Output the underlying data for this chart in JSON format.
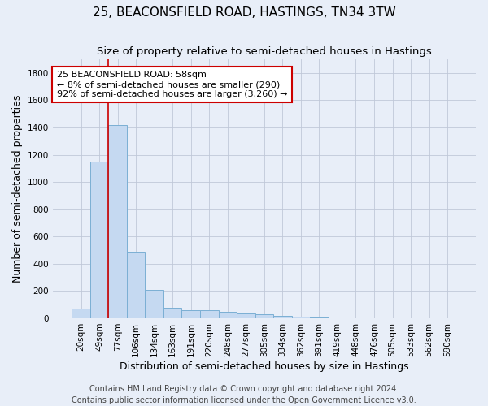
{
  "title": "25, BEACONSFIELD ROAD, HASTINGS, TN34 3TW",
  "subtitle": "Size of property relative to semi-detached houses in Hastings",
  "xlabel": "Distribution of semi-detached houses by size in Hastings",
  "ylabel": "Number of semi-detached properties",
  "categories": [
    "20sqm",
    "49sqm",
    "77sqm",
    "106sqm",
    "134sqm",
    "163sqm",
    "191sqm",
    "220sqm",
    "248sqm",
    "277sqm",
    "305sqm",
    "334sqm",
    "362sqm",
    "391sqm",
    "419sqm",
    "448sqm",
    "476sqm",
    "505sqm",
    "533sqm",
    "562sqm",
    "590sqm"
  ],
  "values": [
    70,
    1150,
    1420,
    490,
    210,
    75,
    62,
    60,
    48,
    35,
    27,
    15,
    10,
    8,
    0,
    0,
    0,
    0,
    0,
    0,
    0
  ],
  "bar_color": "#c5d9f1",
  "bar_edge_color": "#7bafd4",
  "red_line_x": 1.5,
  "red_line_color": "#cc0000",
  "annotation_label": "25 BEACONSFIELD ROAD: 58sqm",
  "annotation_line1": "← 8% of semi-detached houses are smaller (290)",
  "annotation_line2": "92% of semi-detached houses are larger (3,260) →",
  "annotation_box_facecolor": "#ffffff",
  "annotation_box_edgecolor": "#cc0000",
  "ylim": [
    0,
    1900
  ],
  "yticks": [
    0,
    200,
    400,
    600,
    800,
    1000,
    1200,
    1400,
    1600,
    1800
  ],
  "background_color": "#e8eef8",
  "grid_color": "#c0c8d8",
  "title_fontsize": 11,
  "subtitle_fontsize": 9.5,
  "axis_label_fontsize": 9,
  "tick_fontsize": 7.5,
  "annotation_fontsize": 8,
  "footer_fontsize": 7,
  "footer_line1": "Contains HM Land Registry data © Crown copyright and database right 2024.",
  "footer_line2": "Contains public sector information licensed under the Open Government Licence v3.0."
}
